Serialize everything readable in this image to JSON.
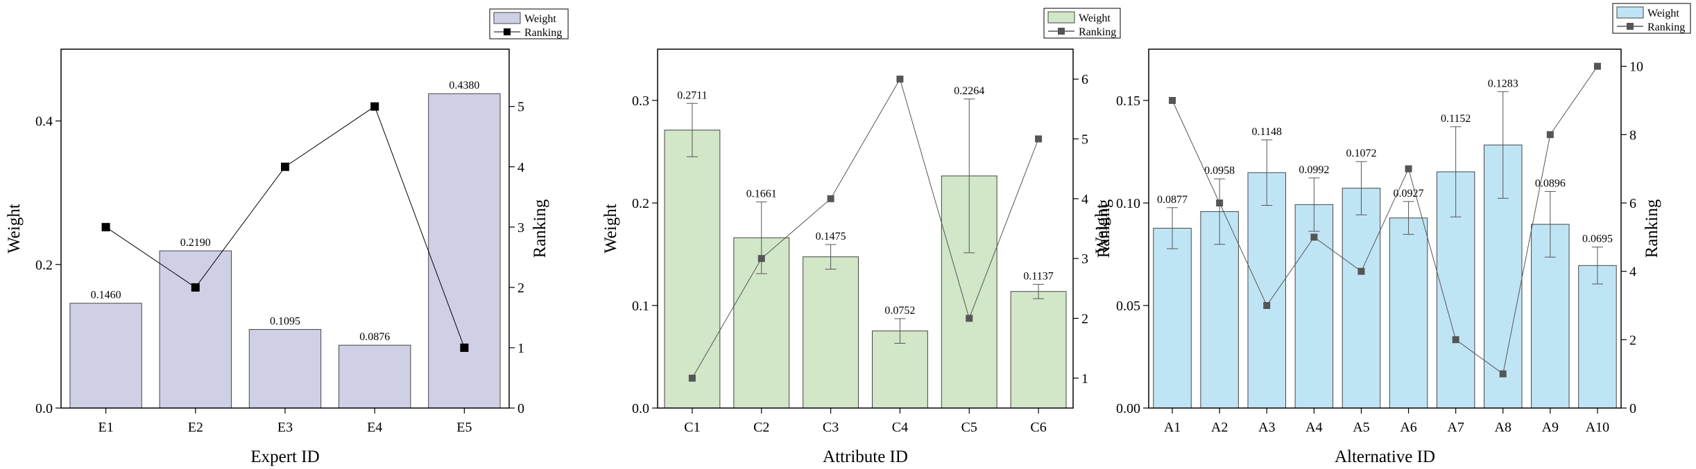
{
  "chart_data": [
    {
      "type": "bar",
      "xlabel": "Expert ID",
      "ylabel": "Weight",
      "y2label": "Ranking",
      "categories": [
        "E1",
        "E2",
        "E3",
        "E4",
        "E5"
      ],
      "bar_color": "#cfd0e6",
      "ylim": [
        0,
        0.5
      ],
      "yticks": [
        0,
        0.2,
        0.4
      ],
      "ytick_labels": [
        "0.0",
        "0.2",
        "0.4"
      ],
      "y2lim": [
        0,
        5.95
      ],
      "y2ticks": [
        0,
        1,
        2,
        3,
        4,
        5
      ],
      "series": [
        {
          "name": "Weight",
          "values": [
            0.146,
            0.219,
            0.1095,
            0.0876,
            0.438
          ],
          "value_labels": [
            "0.1460",
            "0.2190",
            "0.1095",
            "0.0876",
            "0.4380"
          ]
        },
        {
          "name": "Ranking",
          "values": [
            3,
            2,
            4,
            5,
            1
          ],
          "axis": "right",
          "marker_color": "#000000"
        }
      ],
      "legend_placement": "top-right"
    },
    {
      "type": "bar",
      "xlabel": "Attribute ID",
      "ylabel": "Weight",
      "y2label": "Ranking",
      "categories": [
        "C1",
        "C2",
        "C3",
        "C4",
        "C5",
        "C6"
      ],
      "bar_color": "#d2e6c8",
      "ylim": [
        0,
        0.35
      ],
      "yticks": [
        0,
        0.1,
        0.2,
        0.3
      ],
      "ytick_labels": [
        "0.0",
        "0.1",
        "0.2",
        "0.3"
      ],
      "y2lim": [
        0.5,
        6.5
      ],
      "y2ticks": [
        1,
        2,
        3,
        4,
        5,
        6
      ],
      "series": [
        {
          "name": "Weight",
          "values": [
            0.2711,
            0.1661,
            0.1475,
            0.0752,
            0.2264,
            0.1137
          ],
          "errors": [
            0.026,
            0.035,
            0.012,
            0.012,
            0.075,
            0.007
          ],
          "value_labels": [
            "0.2711",
            "0.1661",
            "0.1475",
            "0.0752",
            "0.2264",
            "0.1137"
          ]
        },
        {
          "name": "Ranking",
          "values": [
            1,
            3,
            4,
            6,
            2,
            5
          ],
          "axis": "right",
          "marker_color": "#555555"
        }
      ],
      "legend_placement": "top-right"
    },
    {
      "type": "bar",
      "xlabel": "Alternative ID",
      "ylabel": "Weight",
      "y2label": "Ranking",
      "categories": [
        "A1",
        "A2",
        "A3",
        "A4",
        "A5",
        "A6",
        "A7",
        "A8",
        "A9",
        "A10"
      ],
      "bar_color": "#bfe5f5",
      "ylim": [
        0,
        0.175
      ],
      "yticks": [
        0,
        0.05,
        0.1,
        0.15
      ],
      "ytick_labels": [
        "0.00",
        "0.05",
        "0.10",
        "0.15"
      ],
      "y2lim": [
        0,
        10.5
      ],
      "y2ticks": [
        0,
        2,
        4,
        6,
        8,
        10
      ],
      "series": [
        {
          "name": "Weight",
          "values": [
            0.0877,
            0.0958,
            0.1148,
            0.0992,
            0.1072,
            0.0927,
            0.1152,
            0.1283,
            0.0896,
            0.0695
          ],
          "errors": [
            0.01,
            0.016,
            0.016,
            0.013,
            0.013,
            0.008,
            0.022,
            0.026,
            0.016,
            0.009
          ],
          "value_labels": [
            "0.0877",
            "0.0958",
            "0.1148",
            "0.0992",
            "0.1072",
            "0.0927",
            "0.1152",
            "0.1283",
            "0.0896",
            "0.0695"
          ]
        },
        {
          "name": "Ranking",
          "values": [
            9,
            6,
            3,
            5,
            4,
            7,
            2,
            1,
            8,
            10
          ],
          "axis": "right",
          "marker_color": "#555555"
        }
      ],
      "legend_placement": "top-right"
    }
  ]
}
